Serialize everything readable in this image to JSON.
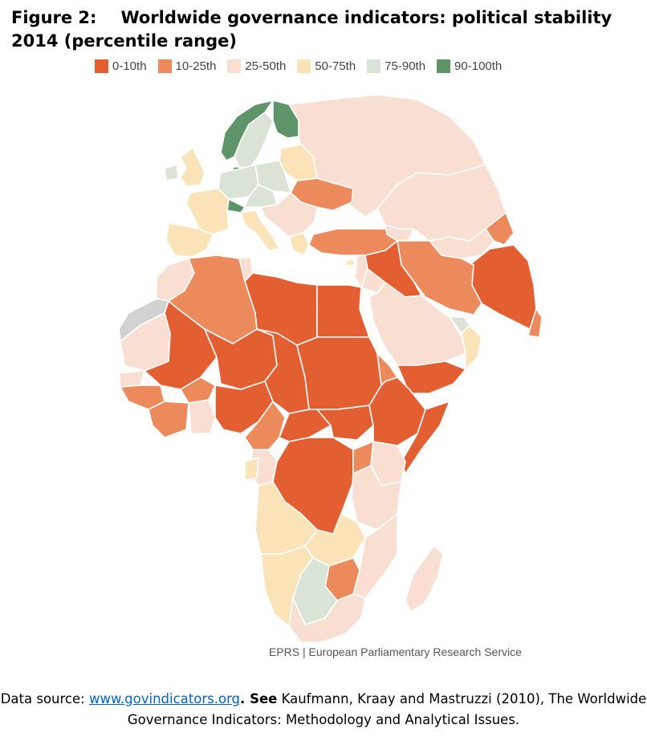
{
  "title": {
    "figure_label": "Figure 2:",
    "text": "Worldwide governance indicators: political stability 2014 (percentile range)"
  },
  "legend": [
    {
      "label": "0-10th",
      "color": "#e35f32"
    },
    {
      "label": "10-25th",
      "color": "#ec8a5c"
    },
    {
      "label": "25-50th",
      "color": "#f9ded2"
    },
    {
      "label": "50-75th",
      "color": "#fbe3b8"
    },
    {
      "label": "75-90th",
      "color": "#d9e3d6"
    },
    {
      "label": "90-100th",
      "color": "#5d9468"
    }
  ],
  "no_data_color": "#d2d2d2",
  "credit": "EPRS | European Parliamentary Research Service",
  "source": {
    "prefix": "Data source: ",
    "link_text": "www.govindicators.org",
    "sep": ".",
    "bold_text": " See",
    "rest": " Kaufmann, Kraay and Mastruzzi (2010), The Worldwide Governance Indicators: Methodology and Analytical Issues."
  }
}
